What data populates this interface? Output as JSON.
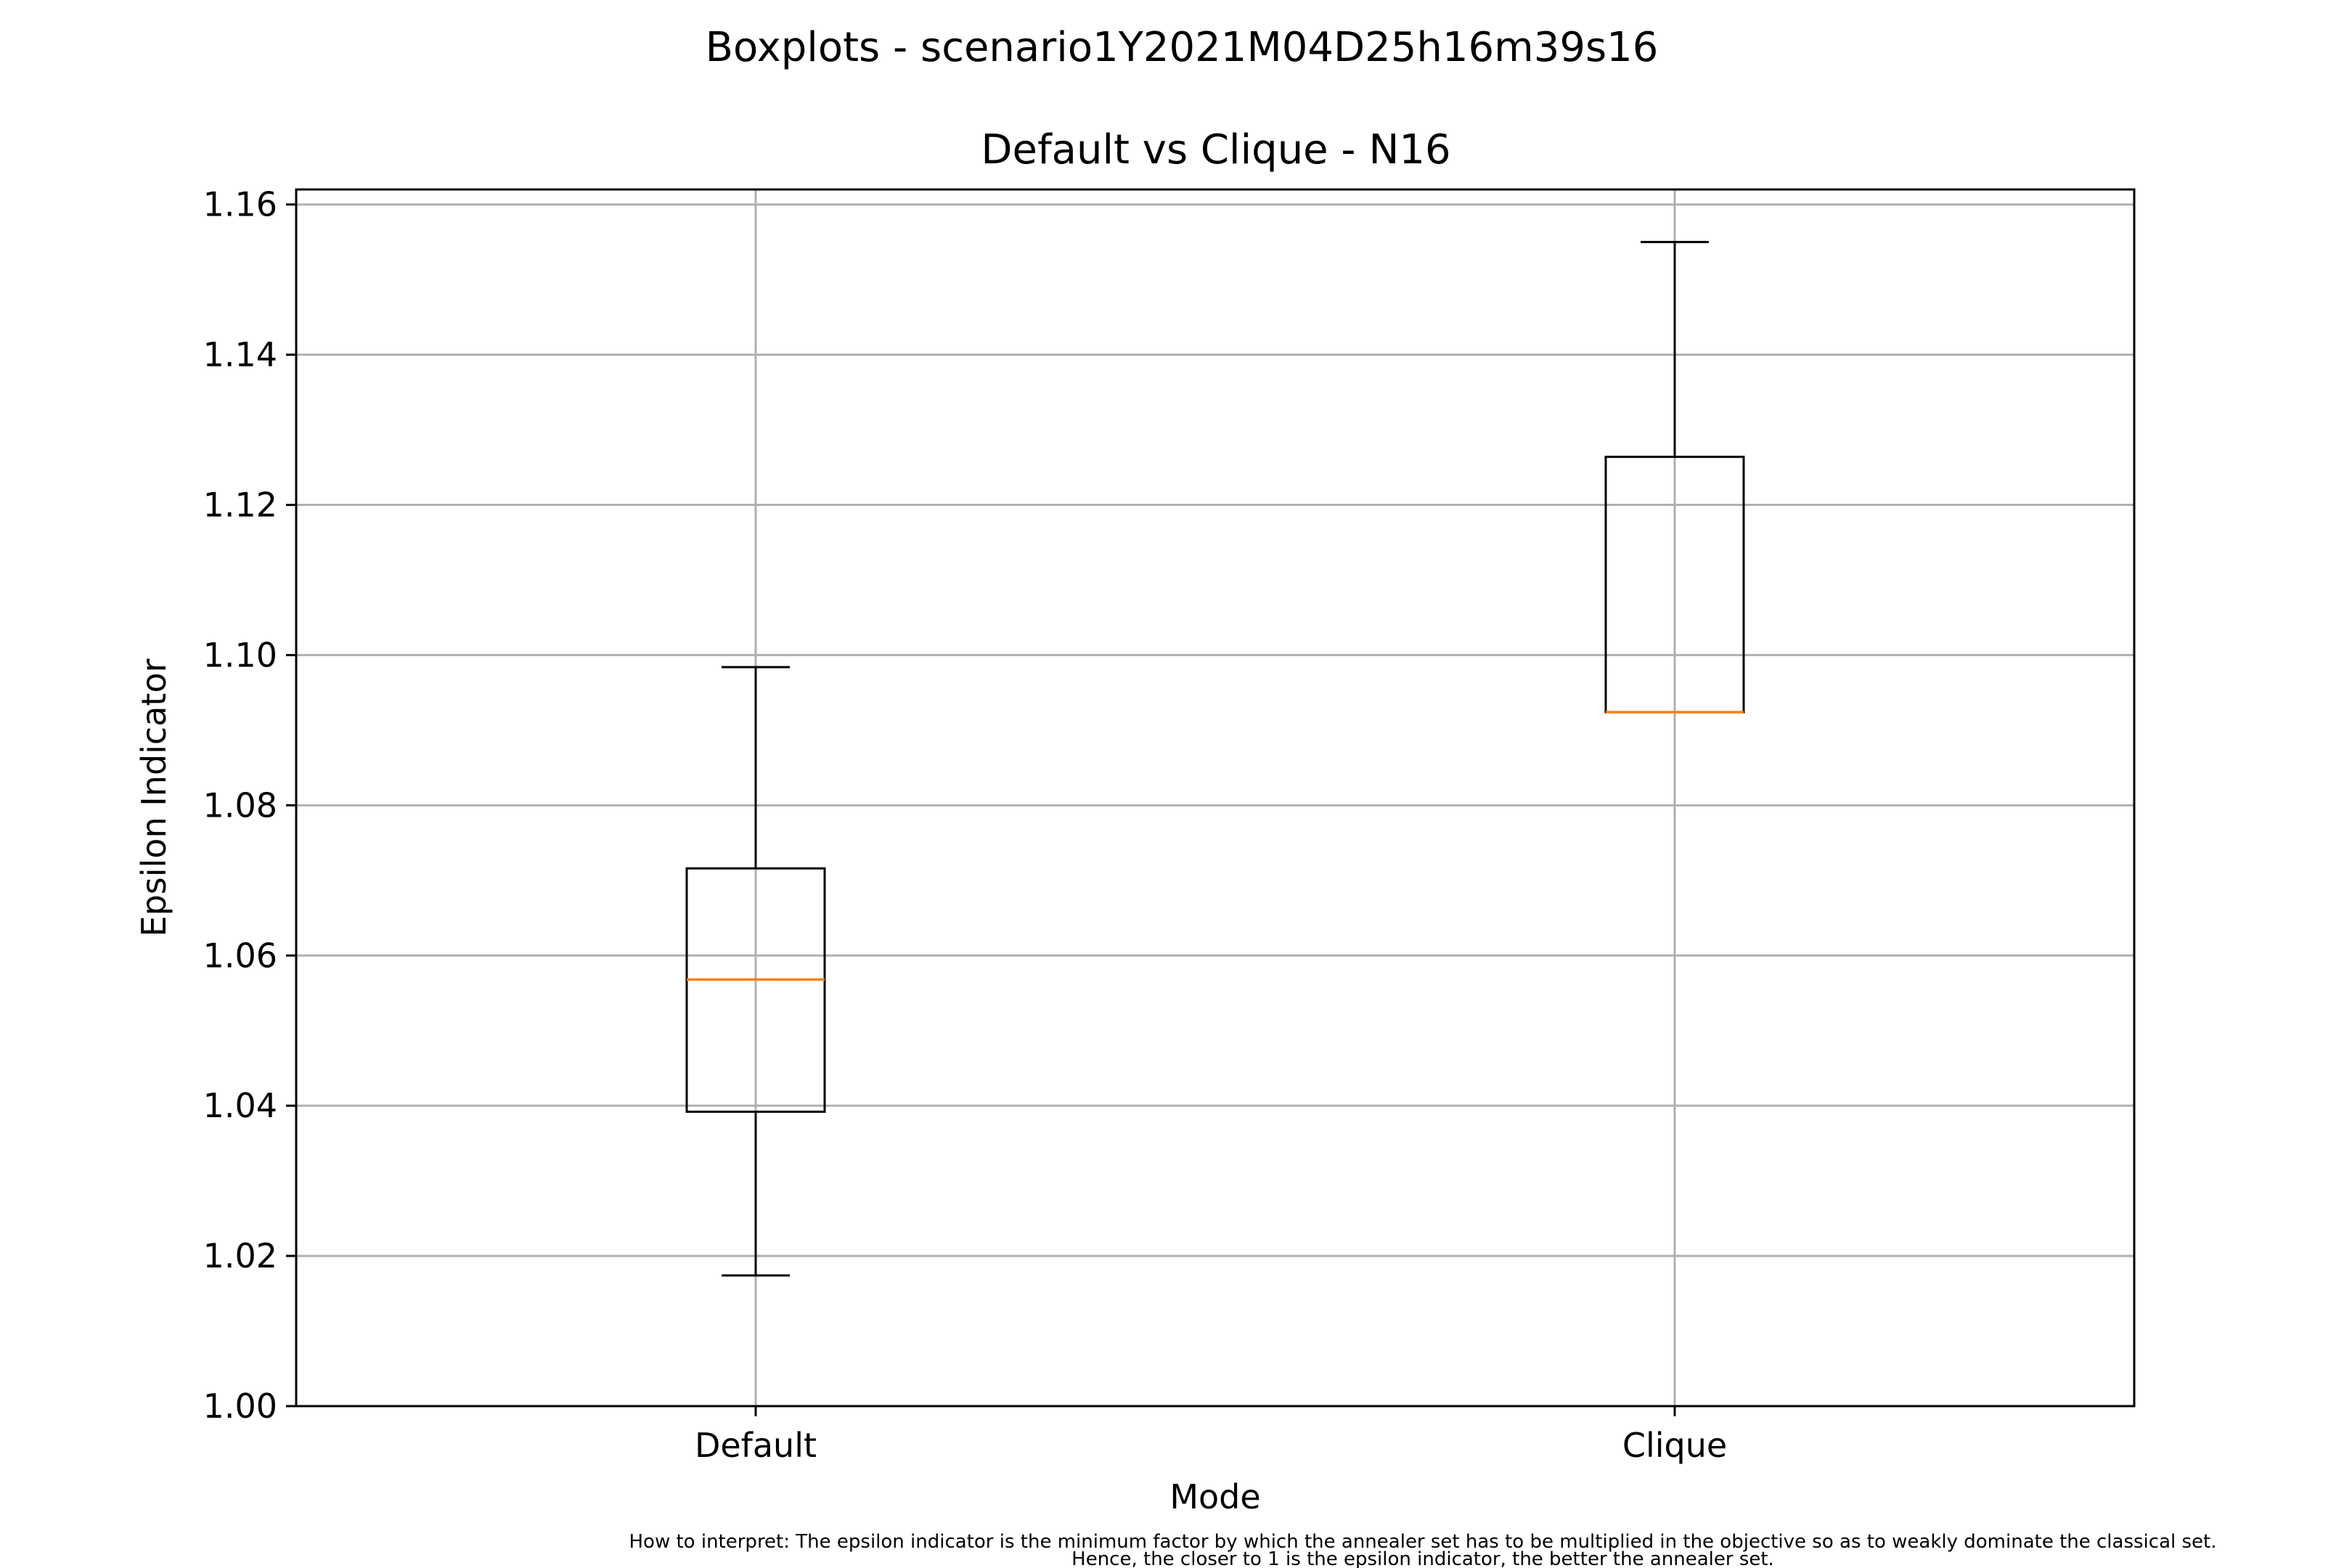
{
  "chart_data": {
    "type": "boxplot",
    "suptitle": "Boxplots - scenario1Y2021M04D25h16m39s16",
    "title": "Default vs Clique - N16",
    "xlabel": "Mode",
    "ylabel": "Epsilon Indicator",
    "ylim": [
      1.0,
      1.162
    ],
    "yticks": [
      1.0,
      1.02,
      1.04,
      1.06,
      1.08,
      1.1,
      1.12,
      1.14,
      1.16
    ],
    "ytick_labels": [
      "1.00",
      "1.02",
      "1.04",
      "1.06",
      "1.08",
      "1.10",
      "1.12",
      "1.14",
      "1.16"
    ],
    "grid": true,
    "categories": [
      "Default",
      "Clique"
    ],
    "boxes": [
      {
        "category": "Default",
        "whisker_low": 1.0174,
        "q1": 1.0392,
        "median": 1.0568,
        "q3": 1.0716,
        "whisker_high": 1.0984
      },
      {
        "category": "Clique",
        "whisker_low": 1.0924,
        "q1": 1.0924,
        "median": 1.0924,
        "q3": 1.1264,
        "whisker_high": 1.155
      }
    ],
    "colors": {
      "box": "#000000",
      "median": "#ff7f0e",
      "grid": "#b0b0b0"
    }
  },
  "footnote": {
    "line1": "How to interpret: The epsilon indicator is the minimum factor by which the annealer set has to be multiplied in the objective so as to weakly dominate the classical set.",
    "line2": "Hence, the closer to 1 is the epsilon indicator, the better the annealer set."
  }
}
